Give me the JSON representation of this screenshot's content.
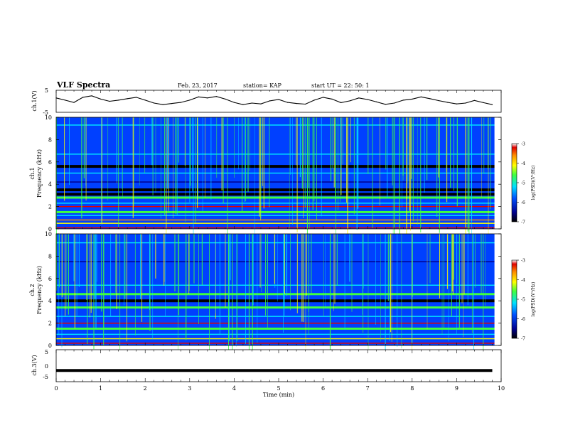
{
  "header": {
    "title": "VLF Spectra",
    "date": "Feb. 23, 2017",
    "station": "station= KAP",
    "start": "start  UT =   22: 50: 1"
  },
  "chart_data": [
    {
      "type": "line",
      "panel": "channel-1-waveform",
      "ylabel": "ch.1(V)",
      "ylim": [
        -5,
        5
      ],
      "yticks": [
        "5",
        "-5"
      ],
      "xlim": [
        0,
        10
      ],
      "x": [
        0.0,
        0.2,
        0.4,
        0.6,
        0.8,
        1.0,
        1.2,
        1.4,
        1.6,
        1.8,
        2.0,
        2.2,
        2.4,
        2.6,
        2.8,
        3.0,
        3.2,
        3.4,
        3.6,
        3.8,
        4.0,
        4.2,
        4.4,
        4.6,
        4.8,
        5.0,
        5.2,
        5.4,
        5.6,
        5.8,
        6.0,
        6.2,
        6.4,
        6.6,
        6.8,
        7.0,
        7.2,
        7.4,
        7.6,
        7.8,
        8.0,
        8.2,
        8.4,
        8.6,
        8.8,
        9.0,
        9.2,
        9.4,
        9.6,
        9.8
      ],
      "y": [
        1.5,
        0.5,
        -0.5,
        1.8,
        2.5,
        1.0,
        0.0,
        0.5,
        1.2,
        1.8,
        0.5,
        -0.8,
        -1.5,
        -1.0,
        -0.5,
        0.5,
        2.0,
        1.5,
        2.2,
        1.0,
        -0.5,
        -1.5,
        -0.8,
        -1.2,
        0.2,
        0.8,
        -0.5,
        -1.0,
        -1.3,
        0.5,
        1.8,
        1.0,
        -0.6,
        0.2,
        1.5,
        0.8,
        -0.3,
        -1.4,
        -0.8,
        0.5,
        1.0,
        2.0,
        1.2,
        0.3,
        -0.5,
        -1.2,
        -0.8,
        0.4,
        -0.6,
        -1.5
      ]
    },
    {
      "type": "heatmap",
      "panel": "channel-1-spectrogram",
      "ylabel": "ch.1\nFrequency (kHz)",
      "ylim": [
        0,
        10
      ],
      "yticks": [
        "0",
        "2",
        "4",
        "6",
        "8",
        "10"
      ],
      "xlim": [
        0,
        10
      ],
      "colorbar": {
        "label": "log(PSD)(V²/Hz)",
        "range": [
          -7,
          -3
        ],
        "ticks": [
          "-3",
          "-4",
          "-5",
          "-6",
          "-7"
        ]
      },
      "bands_khz": [
        {
          "f": 0.1,
          "level": "red"
        },
        {
          "f": 0.5,
          "level": "yellow"
        },
        {
          "f": 0.8,
          "level": "orange"
        },
        {
          "f": 1.2,
          "level": "cyan"
        },
        {
          "f": 1.5,
          "level": "green"
        },
        {
          "f": 2.0,
          "level": "red"
        },
        {
          "f": 2.3,
          "level": "cyan"
        },
        {
          "f": 2.8,
          "level": "green"
        },
        {
          "f": 3.1,
          "level": "black"
        },
        {
          "f": 3.5,
          "level": "black"
        },
        {
          "f": 4.2,
          "level": "dark-blue"
        },
        {
          "f": 5.0,
          "level": "cyan"
        },
        {
          "f": 5.6,
          "level": "black"
        },
        {
          "f": 6.7,
          "level": "cyan"
        },
        {
          "f": 9.3,
          "level": "cyan"
        }
      ]
    },
    {
      "type": "heatmap",
      "panel": "channel-2-spectrogram",
      "ylabel": "ch.2\nFrequency (kHz)",
      "ylim": [
        0,
        10
      ],
      "yticks": [
        "0",
        "2",
        "4",
        "6",
        "8",
        "10"
      ],
      "xlim": [
        0,
        10
      ],
      "colorbar": {
        "label": "log(PSD)(V²/Hz)",
        "range": [
          -7,
          -3
        ],
        "ticks": [
          "-3",
          "-4",
          "-5",
          "-6",
          "-7"
        ]
      },
      "bands_khz": [
        {
          "f": 0.2,
          "level": "red"
        },
        {
          "f": 0.6,
          "level": "yellow"
        },
        {
          "f": 1.0,
          "level": "cyan"
        },
        {
          "f": 1.5,
          "level": "green"
        },
        {
          "f": 2.0,
          "level": "red"
        },
        {
          "f": 2.6,
          "level": "cyan"
        },
        {
          "f": 3.4,
          "level": "green"
        },
        {
          "f": 4.0,
          "level": "black"
        },
        {
          "f": 4.6,
          "level": "green"
        },
        {
          "f": 5.4,
          "level": "cyan"
        },
        {
          "f": 7.5,
          "level": "dark-blue"
        },
        {
          "f": 9.2,
          "level": "cyan"
        }
      ]
    },
    {
      "type": "line",
      "panel": "channel-3-waveform",
      "ylabel": "ch.3(V)",
      "ylim": [
        -5,
        5
      ],
      "yticks": [
        "5",
        "0",
        "-5"
      ],
      "xlim": [
        0,
        10
      ],
      "xticks": [
        "0",
        "1",
        "2",
        "3",
        "4",
        "5",
        "6",
        "7",
        "8",
        "9",
        "10"
      ],
      "xlabel": "Time (min)",
      "x": [
        0,
        9.8
      ],
      "y": [
        -1.5,
        -1.5
      ]
    }
  ],
  "colors": {
    "black": "#000000",
    "dark-blue": "#00008f",
    "blue": "#0050ff",
    "cyan": "#00e0ff",
    "green": "#40ff40",
    "yellow": "#ffff00",
    "orange": "#ff8c00",
    "red": "#e00000"
  }
}
